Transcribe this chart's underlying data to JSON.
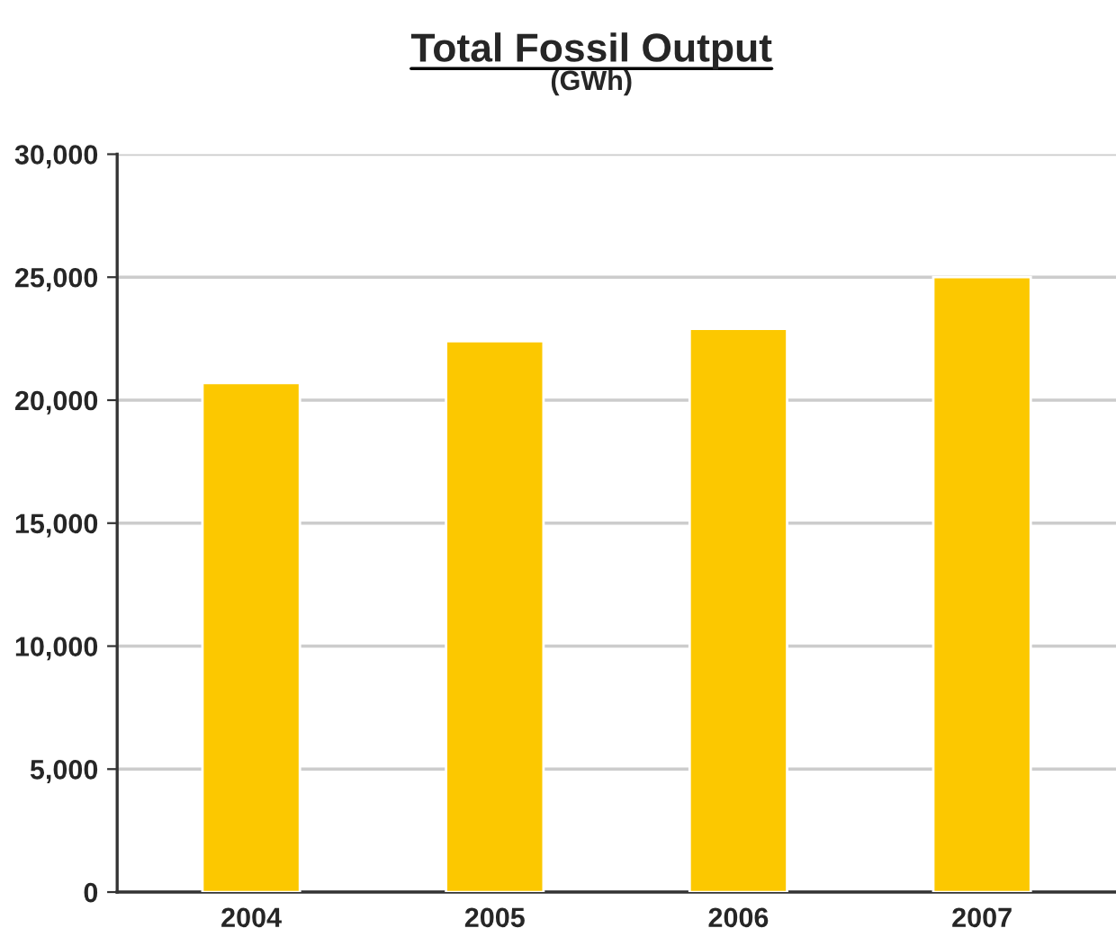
{
  "chart_data": {
    "type": "bar",
    "title": "Total Fossil Output",
    "subtitle": "(GWh)",
    "categories": [
      "2004",
      "2005",
      "2006",
      "2007"
    ],
    "values": [
      20700,
      22400,
      22900,
      25000
    ],
    "color": "#fcc800",
    "ylim": [
      0,
      30000
    ],
    "yticks": [
      {
        "value": 0,
        "label": "0"
      },
      {
        "value": 5000,
        "label": "5,000"
      },
      {
        "value": 10000,
        "label": "10,000"
      },
      {
        "value": 15000,
        "label": "15,000"
      },
      {
        "value": 20000,
        "label": "20,000"
      },
      {
        "value": 25000,
        "label": "25,000"
      },
      {
        "value": 30000,
        "label": "30,000"
      }
    ],
    "grid": "y",
    "legend": false
  }
}
